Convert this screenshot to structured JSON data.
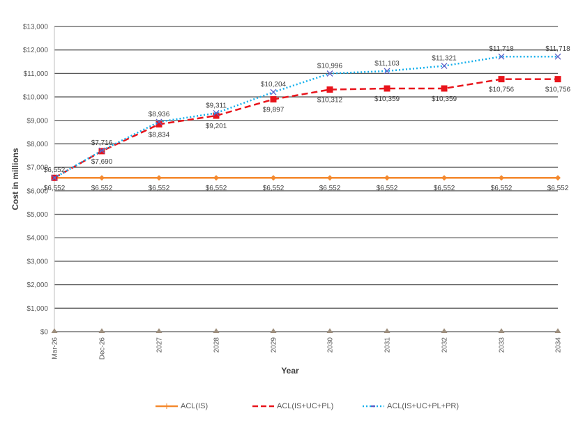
{
  "chart_data": {
    "type": "line",
    "title": "",
    "xlabel": "Year",
    "ylabel": "Cost in millions",
    "categories": [
      "Mar-26",
      "Dec-26",
      "2027",
      "2028",
      "2029",
      "2030",
      "2031",
      "2032",
      "2033",
      "2034"
    ],
    "ylim": [
      0,
      13000
    ],
    "yticks": [
      0,
      1000,
      2000,
      3000,
      4000,
      5000,
      6000,
      7000,
      8000,
      9000,
      10000,
      11000,
      12000,
      13000
    ],
    "ytick_labels": [
      "$0",
      "$1,000",
      "$2,000",
      "$3,000",
      "$4,000",
      "$5,000",
      "$6,000",
      "$7,000",
      "$8,000",
      "$9,000",
      "$10,000",
      "$11,000",
      "$12,000",
      "$13,000"
    ],
    "grid": true,
    "legend_position": "bottom",
    "series": [
      {
        "name": "ACL(IS)",
        "color": "#F4892E",
        "style": "solid",
        "marker": "diamond",
        "values": [
          6552,
          6552,
          6552,
          6552,
          6552,
          6552,
          6552,
          6552,
          6552,
          6552
        ],
        "labels": [
          "$6,552",
          "$6,552",
          "$6,552",
          "$6,552",
          "$6,552",
          "$6,552",
          "$6,552",
          "$6,552",
          "$6,552",
          "$6,552"
        ],
        "label_position": "below",
        "in_legend": true
      },
      {
        "name": "ACL(IS+UC+PL)",
        "color": "#E8141B",
        "style": "dashed",
        "marker": "square",
        "values": [
          6552,
          7690,
          8834,
          9201,
          9897,
          10312,
          10359,
          10359,
          10756,
          10756
        ],
        "labels": [
          "",
          "$7,690",
          "$8,834",
          "$9,201",
          "$9,897",
          "$10,312",
          "$10,359",
          "$10,359",
          "$10,756",
          "$10,756"
        ],
        "label_position": "below",
        "in_legend": true
      },
      {
        "name": "ACL(IS+UC+PL+PR)",
        "color": "#16B0EC",
        "marker_color": "#5B5FC7",
        "style": "dotted",
        "marker": "x",
        "values": [
          6552,
          7716,
          8936,
          9311,
          10204,
          10996,
          11103,
          11321,
          11718,
          11718
        ],
        "labels": [
          "$6,552",
          "$7,716",
          "$8,936",
          "$9,311",
          "$10,204",
          "$10,996",
          "$11,103",
          "$11,321",
          "$11,718",
          "$11,718"
        ],
        "label_position": "above",
        "in_legend": true
      },
      {
        "name": "",
        "color": "#9E8F7E",
        "style": "none",
        "marker": "triangle",
        "values": [
          0,
          0,
          0,
          0,
          0,
          0,
          0,
          0,
          0,
          0
        ],
        "labels": [
          "",
          "",
          "",
          "",
          "",
          "",
          "",
          "",
          "",
          ""
        ],
        "label_position": "none",
        "in_legend": false
      }
    ]
  }
}
